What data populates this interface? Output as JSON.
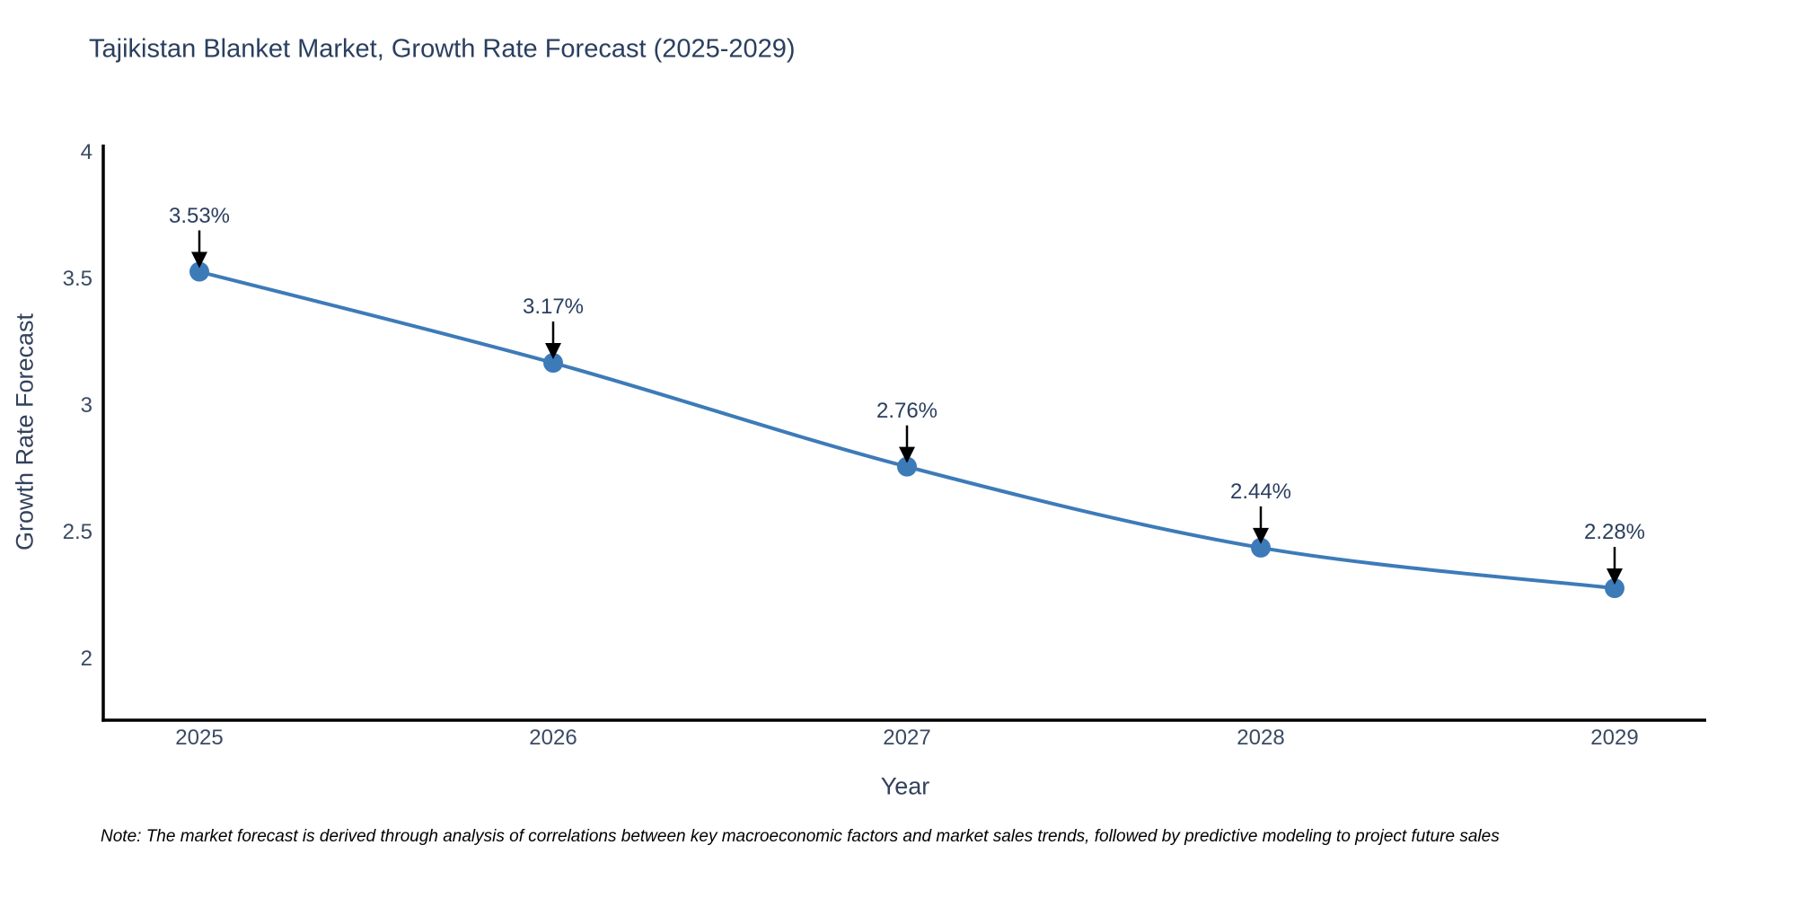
{
  "chart_data": {
    "type": "line",
    "title": "Tajikistan Blanket Market, Growth Rate Forecast (2025-2029)",
    "xlabel": "Year",
    "ylabel": "Growth Rate Forecast",
    "x": [
      2025,
      2026,
      2027,
      2028,
      2029
    ],
    "y": [
      3.53,
      3.17,
      2.76,
      2.44,
      2.28
    ],
    "point_labels": [
      "3.53%",
      "3.17%",
      "2.76%",
      "2.44%",
      "2.28%"
    ],
    "x_tick_labels": [
      "2025",
      "2026",
      "2027",
      "2028",
      "2029"
    ],
    "y_tick_values": [
      4,
      3.5,
      3,
      2.5,
      2
    ],
    "y_tick_labels": [
      "4",
      "3.5",
      "3",
      "2.5",
      "2"
    ],
    "ylim": [
      1.77,
      4.03
    ],
    "xlim": [
      2024.73,
      2029.26
    ],
    "grid": false,
    "legend": false,
    "line_shape": "spline",
    "line_color": "#3d7bb8",
    "marker_color": "#3d7bb8",
    "axis_color": "#000000",
    "arrow_color": "#000000",
    "title_color": "#2a3f5f"
  },
  "note": "Note: The market forecast is derived through analysis of correlations between key macroeconomic factors and market sales trends, followed by predictive modeling to project future sales"
}
